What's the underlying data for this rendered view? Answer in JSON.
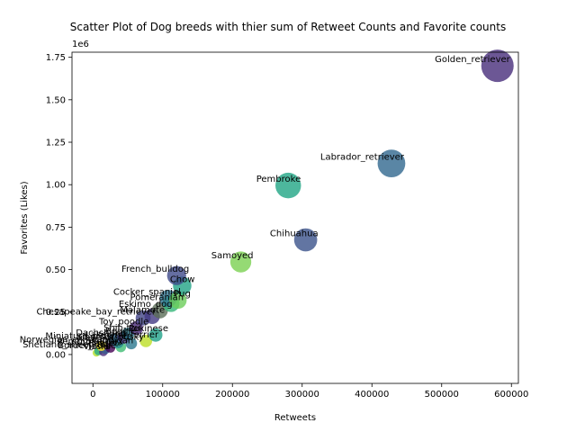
{
  "chart_data": {
    "type": "scatter",
    "title": "Scatter Plot of Dog breeds with thier sum of Retweet Counts and Favorite counts",
    "xlabel": "Retweets",
    "ylabel": "Favorites (Likes)",
    "y_scale_label": "1e6",
    "xlim": [
      -30000,
      610000
    ],
    "ylim": [
      -170000,
      1780000
    ],
    "xticks": [
      0,
      100000,
      200000,
      300000,
      400000,
      500000,
      600000
    ],
    "xtick_labels": [
      "0",
      "100000",
      "200000",
      "300000",
      "400000",
      "500000",
      "600000"
    ],
    "yticks": [
      0,
      250000,
      500000,
      750000,
      1000000,
      1250000,
      1500000,
      1750000
    ],
    "ytick_labels": [
      "0.00",
      "0.25",
      "0.50",
      "0.75",
      "1.00",
      "1.25",
      "1.50",
      "1.75"
    ],
    "grid": false,
    "points": [
      {
        "label": "Golden_retriever",
        "x": 580000,
        "y": 1700000,
        "color": "#472d7b"
      },
      {
        "label": "Labrador_retriever",
        "x": 428000,
        "y": 1125000,
        "color": "#31688e"
      },
      {
        "label": "Pembroke",
        "x": 280000,
        "y": 995000,
        "color": "#21a585"
      },
      {
        "label": "Chihuahua",
        "x": 305000,
        "y": 675000,
        "color": "#3b528b"
      },
      {
        "label": "Samoyed",
        "x": 212000,
        "y": 545000,
        "color": "#7ad151"
      },
      {
        "label": "French_bulldog",
        "x": 120000,
        "y": 465000,
        "color": "#3e4a89"
      },
      {
        "label": "Chow",
        "x": 128000,
        "y": 405000,
        "color": "#20a386"
      },
      {
        "label": "Pug",
        "x": 122000,
        "y": 320000,
        "color": "#6ccd5a"
      },
      {
        "label": "Cocker_spaniel",
        "x": 108000,
        "y": 330000,
        "color": "#2c728e"
      },
      {
        "label": "Pomeranian",
        "x": 112000,
        "y": 300000,
        "color": "#35b779"
      },
      {
        "label": "Eskimo_dog",
        "x": 96000,
        "y": 260000,
        "color": "#5b6e57"
      },
      {
        "label": "Malamute",
        "x": 85000,
        "y": 225000,
        "color": "#443983"
      },
      {
        "label": "Chesapeake_bay_retriever",
        "x": 72000,
        "y": 215000,
        "color": "#414487"
      },
      {
        "label": "Toy_poodle",
        "x": 62000,
        "y": 155000,
        "color": "#482878"
      },
      {
        "label": "Shih-tzu",
        "x": 50000,
        "y": 120000,
        "color": "#287d8e"
      },
      {
        "label": "Beagle",
        "x": 44000,
        "y": 100000,
        "color": "#46337e"
      },
      {
        "label": "Miniature_pinscher",
        "x": 36000,
        "y": 70000,
        "color": "#24868e"
      },
      {
        "label": "Pekinese",
        "x": 90000,
        "y": 115000,
        "color": "#1fa188"
      },
      {
        "label": "Lakeland_terrier",
        "x": 76000,
        "y": 80000,
        "color": "#bddf26"
      },
      {
        "label": "Siberian_husky",
        "x": 55000,
        "y": 65000,
        "color": "#2a788e"
      },
      {
        "label": "Cardigan",
        "x": 40000,
        "y": 45000,
        "color": "#3fbc73"
      },
      {
        "label": "Dachshund",
        "x": 30000,
        "y": 90000,
        "color": "#31688e"
      },
      {
        "label": "Pembroke_mix",
        "x": 25000,
        "y": 40000,
        "color": "#440154"
      },
      {
        "label": "Basset",
        "x": 18000,
        "y": 30000,
        "color": "#365c8d"
      },
      {
        "label": "Norwegian_elkhound",
        "x": 12000,
        "y": 50000,
        "color": "#fde725"
      },
      {
        "label": "Shetland_sheepdog",
        "x": 8000,
        "y": 20000,
        "color": "#22a884"
      },
      {
        "label": "Vizsla",
        "x": 5000,
        "y": 10000,
        "color": "#b5de2b"
      },
      {
        "label": "Border_collie",
        "x": 15000,
        "y": 15000,
        "color": "#472c7a"
      }
    ]
  }
}
